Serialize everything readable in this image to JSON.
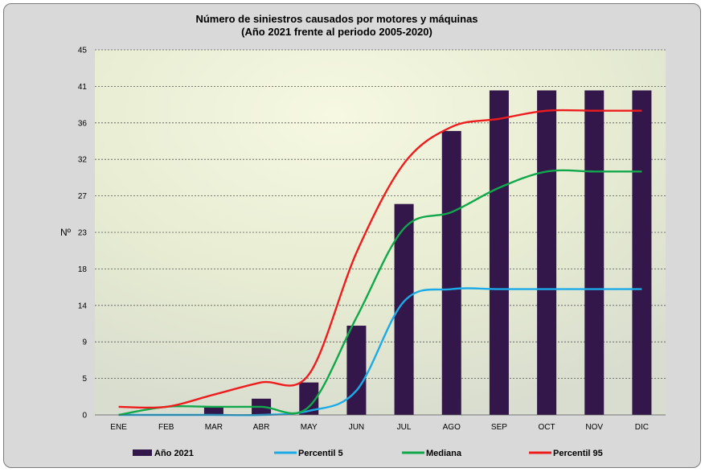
{
  "chart_data": {
    "type": "bar+line",
    "title": [
      "Número de siniestros causados por motores y máquinas",
      "(Año 2021 frente al periodo 2005-2020)"
    ],
    "ylabel": "Nº",
    "xlabel": "",
    "categories": [
      "ENE",
      "FEB",
      "MAR",
      "ABR",
      "MAY",
      "JUN",
      "JUL",
      "AGO",
      "SEP",
      "OCT",
      "NOV",
      "DIC"
    ],
    "ylim": [
      0,
      45
    ],
    "yticks": [
      "0",
      "5",
      "9",
      "14",
      "18",
      "23",
      "27",
      "32",
      "36",
      "41",
      "45"
    ],
    "grid": true,
    "legend_position": "bottom",
    "series": [
      {
        "name": "Año 2021",
        "type": "bar",
        "color": "#33174a",
        "values": [
          0,
          0,
          1,
          2,
          4,
          11,
          26,
          35,
          40,
          40,
          40,
          40
        ]
      },
      {
        "name": "Percentil 5",
        "type": "line",
        "color": "#1aabe8",
        "values": [
          0,
          0,
          0,
          0,
          0.5,
          3,
          14,
          15.5,
          15.5,
          15.5,
          15.5,
          15.5
        ]
      },
      {
        "name": "Mediana",
        "type": "line",
        "color": "#10a84a",
        "values": [
          0,
          1,
          1,
          1,
          1,
          12,
          23,
          25,
          28,
          30,
          30,
          30
        ]
      },
      {
        "name": "Percentil 95",
        "type": "line",
        "color": "#ee1c1c",
        "values": [
          1,
          1,
          2.5,
          4,
          5,
          20,
          31,
          35.5,
          36.5,
          37.5,
          37.5,
          37.5
        ]
      }
    ]
  }
}
